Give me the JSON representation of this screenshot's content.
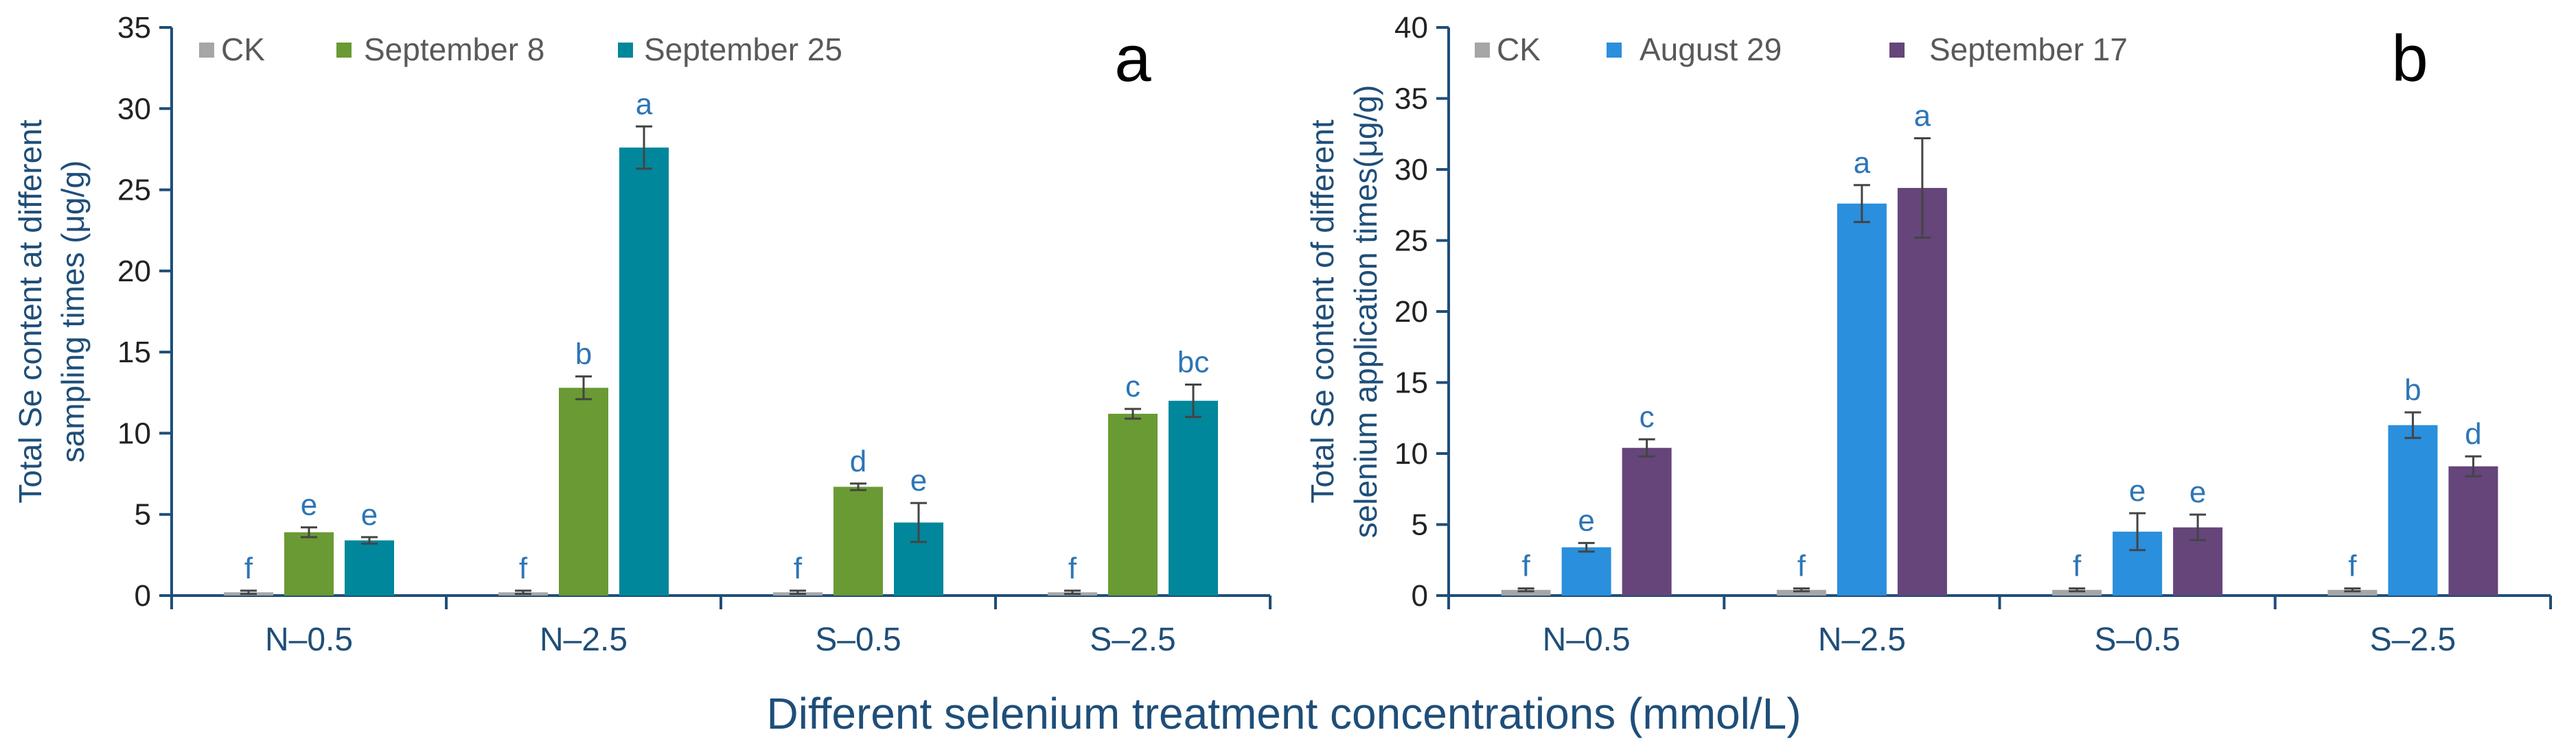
{
  "figure": {
    "xlabel": "Different selenium treatment concentrations (mmol/L)"
  },
  "colors": {
    "axis": "#1f4e79",
    "sig_letter": "#2e75b6",
    "text": "#222222",
    "error_bar": "#444444"
  },
  "chart_data": [
    {
      "type": "bar",
      "panel_label": "a",
      "title": "",
      "ylabel": [
        "Total Se content at different",
        "sampling times (μg/g)"
      ],
      "xlabel": "Different selenium treatment concentrations (mmol/L)",
      "categories": [
        "N–0.5",
        "N–2.5",
        "S–0.5",
        "S–2.5"
      ],
      "ylim": [
        0,
        35
      ],
      "yticks": [
        0,
        5,
        10,
        15,
        20,
        25,
        30,
        35
      ],
      "legend_position": "top",
      "series": [
        {
          "name": "CK",
          "color": "#a6a6a6",
          "values": [
            0.2,
            0.2,
            0.2,
            0.2
          ],
          "errors": [
            0.1,
            0.1,
            0.1,
            0.1
          ],
          "letters": [
            "f",
            "f",
            "f",
            "f"
          ]
        },
        {
          "name": "September 8",
          "color": "#6a9a34",
          "values": [
            3.9,
            12.8,
            6.7,
            11.2
          ],
          "errors": [
            0.3,
            0.7,
            0.2,
            0.3
          ],
          "letters": [
            "e",
            "b",
            "d",
            "c"
          ]
        },
        {
          "name": "September 25",
          "color": "#00879b",
          "values": [
            3.4,
            27.6,
            4.5,
            12.0
          ],
          "errors": [
            0.2,
            1.3,
            1.2,
            1.0
          ],
          "letters": [
            "e",
            "a",
            "e",
            "bc"
          ]
        }
      ]
    },
    {
      "type": "bar",
      "panel_label": "b",
      "title": "",
      "ylabel": [
        "Total Se content of different",
        "selenium application times(μg/g)"
      ],
      "xlabel": "Different selenium treatment concentrations (mmol/L)",
      "categories": [
        "N–0.5",
        "N–2.5",
        "S–0.5",
        "S–2.5"
      ],
      "ylim": [
        0,
        40
      ],
      "yticks": [
        0,
        5,
        10,
        15,
        20,
        25,
        30,
        35,
        40
      ],
      "legend_position": "top",
      "series": [
        {
          "name": "CK",
          "color": "#a6a6a6",
          "values": [
            0.4,
            0.4,
            0.4,
            0.4
          ],
          "errors": [
            0.1,
            0.1,
            0.1,
            0.1
          ],
          "letters": [
            "f",
            "f",
            "f",
            "f"
          ]
        },
        {
          "name": "August 29",
          "color": "#2a8fdc",
          "values": [
            3.4,
            27.6,
            4.5,
            12.0
          ],
          "errors": [
            0.3,
            1.3,
            1.3,
            0.9
          ],
          "letters": [
            "e",
            "a",
            "e",
            "b"
          ]
        },
        {
          "name": "September 17",
          "color": "#65457a",
          "values": [
            10.4,
            28.7,
            4.8,
            9.1
          ],
          "errors": [
            0.6,
            3.5,
            0.9,
            0.7
          ],
          "letters": [
            "c",
            "a",
            "e",
            "d"
          ]
        }
      ]
    }
  ]
}
